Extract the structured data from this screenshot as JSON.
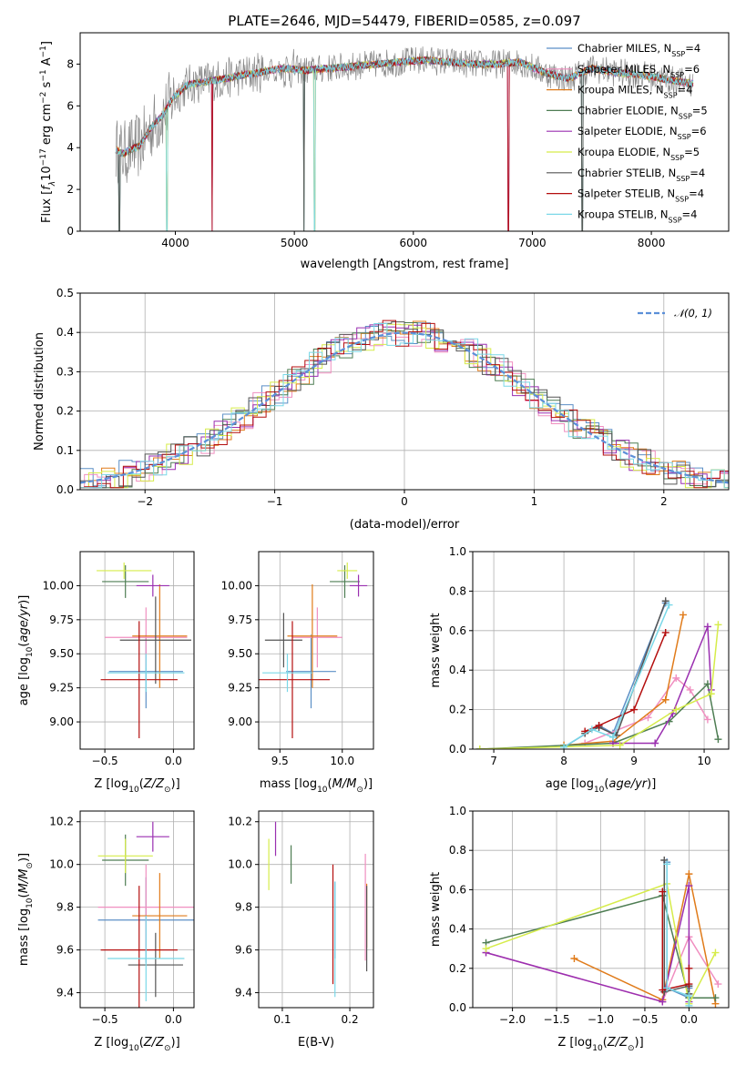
{
  "figure": {
    "width": 819,
    "height": 1170
  },
  "colors": [
    "#5b8fc6",
    "#f08fc0",
    "#e07b1a",
    "#4e7d53",
    "#9a2fb0",
    "#d6ec4a",
    "#555555",
    "#b40e0e",
    "#7ad8e8"
  ],
  "chart_data": [
    {
      "id": "spectrum",
      "type": "line",
      "title": "PLATE=2646, MJD=54479, FIBERID=0585, z=0.097",
      "xlabel": "wavelength [Angstrom, rest frame]",
      "ylabel": "Flux [fλ10⁻¹⁷ erg cm⁻² s⁻¹ A⁻¹]",
      "xlim": [
        3200,
        8650
      ],
      "ylim": [
        0,
        9.5
      ],
      "xticks": [
        4000,
        5000,
        6000,
        7000,
        8000
      ],
      "yticks": [
        0,
        2,
        4,
        6,
        8
      ],
      "continuum": {
        "x": [
          3500,
          3560,
          3620,
          3700,
          3800,
          3900,
          3980,
          4100,
          4300,
          4500,
          4700,
          4900,
          5100,
          5300,
          5500,
          5700,
          5900,
          6100,
          6300,
          6500,
          6700,
          6900,
          7100,
          7300,
          7500,
          7700,
          7900,
          8100,
          8300
        ],
        "y": [
          3.9,
          3.7,
          3.9,
          4.1,
          5.0,
          5.6,
          6.4,
          7.0,
          7.2,
          7.4,
          7.6,
          7.8,
          7.7,
          7.8,
          7.9,
          8.0,
          8.1,
          8.2,
          8.1,
          8.0,
          8.0,
          8.1,
          7.6,
          7.3,
          7.8,
          7.6,
          7.5,
          7.3,
          7.1
        ]
      },
      "absorption_lines": [
        3530,
        3930,
        4310,
        5080,
        5170,
        6800,
        7420
      ],
      "legend_position": "upper-right",
      "series": [
        {
          "name": "Chabrier MILES, N",
          "sub": "SSP",
          "value": "=4",
          "color": "#5b8fc6"
        },
        {
          "name": "Salpeter MILES, N",
          "sub": "SSP",
          "value": "=6",
          "color": "#f08fc0"
        },
        {
          "name": "Kroupa MILES, N",
          "sub": "SSP",
          "value": "=4",
          "color": "#e07b1a"
        },
        {
          "name": "Chabrier ELODIE, N",
          "sub": "SSP",
          "value": "=5",
          "color": "#4e7d53"
        },
        {
          "name": "Salpeter ELODIE, N",
          "sub": "SSP",
          "value": "=6",
          "color": "#9a2fb0"
        },
        {
          "name": "Kroupa ELODIE, N",
          "sub": "SSP",
          "value": "=5",
          "color": "#d6ec4a"
        },
        {
          "name": "Chabrier STELIB, N",
          "sub": "SSP",
          "value": "=4",
          "color": "#555555"
        },
        {
          "name": "Salpeter STELIB, N",
          "sub": "SSP",
          "value": "=4",
          "color": "#b40e0e"
        },
        {
          "name": "Kroupa STELIB, N",
          "sub": "SSP",
          "value": "=4",
          "color": "#7ad8e8"
        }
      ]
    },
    {
      "id": "residuals",
      "type": "line",
      "xlabel": "(data-model)/error",
      "ylabel": "Normed distribution",
      "xlim": [
        -2.5,
        2.5
      ],
      "ylim": [
        0,
        0.5
      ],
      "xticks": [
        -2,
        -1,
        0,
        1,
        2
      ],
      "yticks": [
        0.0,
        0.1,
        0.2,
        0.3,
        0.4,
        0.5
      ],
      "bin_width": 0.1,
      "reference_curve": {
        "name": "𝒩(0, 1)",
        "mean": 0,
        "sigma": 1,
        "color": "#5b8fd8",
        "style": "dashed"
      },
      "legend_position": "upper-right"
    },
    {
      "id": "age-vs-Z",
      "type": "scatter",
      "xlabel": "Z [log₁₀(Z/Z⊙)]",
      "ylabel": "age  [log₁₀(age/yr)]",
      "xlim": [
        -0.68,
        0.15
      ],
      "ylim": [
        8.8,
        10.25
      ],
      "xticks": [
        -0.5,
        0.0
      ],
      "yticks": [
        9.0,
        9.25,
        9.5,
        9.75,
        10.0
      ],
      "points": [
        {
          "x": -0.2,
          "xerr": 0.27,
          "y": 9.37,
          "yerr": 0.27,
          "color": "#5b8fc6"
        },
        {
          "x": -0.2,
          "xerr": 0.3,
          "y": 9.62,
          "yerr": 0.22,
          "color": "#f08fc0"
        },
        {
          "x": -0.1,
          "xerr": 0.2,
          "y": 9.63,
          "yerr": 0.38,
          "color": "#e07b1a"
        },
        {
          "x": -0.35,
          "xerr": 0.17,
          "y": 10.03,
          "yerr": 0.12,
          "color": "#4e7d53"
        },
        {
          "x": -0.15,
          "xerr": 0.12,
          "y": 10.0,
          "yerr": 0.08,
          "color": "#9a2fb0"
        },
        {
          "x": -0.36,
          "xerr": 0.2,
          "y": 10.11,
          "yerr": 0.06,
          "color": "#d6ec4a"
        },
        {
          "x": -0.13,
          "xerr": 0.26,
          "y": 9.6,
          "yerr": 0.32,
          "color": "#555555"
        },
        {
          "x": -0.25,
          "xerr": 0.28,
          "y": 9.31,
          "yerr": 0.43,
          "color": "#b40e0e"
        },
        {
          "x": -0.2,
          "xerr": 0.28,
          "y": 9.36,
          "yerr": 0.14,
          "color": "#7ad8e8"
        }
      ]
    },
    {
      "id": "age-vs-mass",
      "type": "scatter",
      "xlabel": "mass [log₁₀(M/M⊙)]",
      "ylabel": "",
      "xlim": [
        9.33,
        10.25
      ],
      "ylim": [
        8.8,
        10.25
      ],
      "xticks": [
        9.5,
        10.0
      ],
      "yticks": [
        9.0,
        9.25,
        9.5,
        9.75,
        10.0
      ],
      "points": [
        {
          "x": 9.75,
          "xerr": 0.2,
          "y": 9.37,
          "yerr": 0.27,
          "color": "#5b8fc6"
        },
        {
          "x": 9.8,
          "xerr": 0.2,
          "y": 9.62,
          "yerr": 0.22,
          "color": "#f08fc0"
        },
        {
          "x": 9.76,
          "xerr": 0.2,
          "y": 9.63,
          "yerr": 0.38,
          "color": "#e07b1a"
        },
        {
          "x": 10.02,
          "xerr": 0.12,
          "y": 10.03,
          "yerr": 0.12,
          "color": "#4e7d53"
        },
        {
          "x": 10.13,
          "xerr": 0.07,
          "y": 10.0,
          "yerr": 0.08,
          "color": "#9a2fb0"
        },
        {
          "x": 10.04,
          "xerr": 0.08,
          "y": 10.11,
          "yerr": 0.06,
          "color": "#d6ec4a"
        },
        {
          "x": 9.53,
          "xerr": 0.15,
          "y": 9.6,
          "yerr": 0.2,
          "color": "#555555"
        },
        {
          "x": 9.6,
          "xerr": 0.3,
          "y": 9.31,
          "yerr": 0.43,
          "color": "#b40e0e"
        },
        {
          "x": 9.56,
          "xerr": 0.2,
          "y": 9.36,
          "yerr": 0.14,
          "color": "#7ad8e8"
        }
      ]
    },
    {
      "id": "weight-vs-age",
      "type": "line",
      "xlabel": "age  [log₁₀(age/yr)]",
      "ylabel": "mass weight",
      "xlim": [
        6.7,
        10.35
      ],
      "ylim": [
        0,
        1
      ],
      "xticks": [
        7,
        8,
        9,
        10
      ],
      "yticks": [
        0.0,
        0.2,
        0.4,
        0.6,
        0.8,
        1.0
      ],
      "series": [
        {
          "color": "#5b8fc6",
          "x": [
            8.0,
            8.5,
            8.7,
            9.45
          ],
          "y": [
            0.01,
            0.12,
            0.08,
            0.74
          ]
        },
        {
          "color": "#f08fc0",
          "x": [
            8.3,
            9.2,
            9.6,
            9.8,
            10.05
          ],
          "y": [
            0.03,
            0.16,
            0.36,
            0.3,
            0.15
          ]
        },
        {
          "color": "#e07b1a",
          "x": [
            8.0,
            8.7,
            9.45,
            9.7
          ],
          "y": [
            0.02,
            0.04,
            0.25,
            0.68
          ]
        },
        {
          "color": "#4e7d53",
          "x": [
            6.8,
            8.7,
            9.5,
            10.05,
            10.2
          ],
          "y": [
            0.0,
            0.03,
            0.14,
            0.33,
            0.05
          ]
        },
        {
          "color": "#9a2fb0",
          "x": [
            8.7,
            9.3,
            9.55,
            10.05,
            10.1
          ],
          "y": [
            0.03,
            0.03,
            0.18,
            0.62,
            0.3
          ]
        },
        {
          "color": "#d6ec4a",
          "x": [
            6.8,
            8.8,
            9.6,
            10.1,
            10.2
          ],
          "y": [
            0.0,
            0.02,
            0.2,
            0.28,
            0.63
          ]
        },
        {
          "color": "#555555",
          "x": [
            8.3,
            8.5,
            8.75,
            9.45
          ],
          "y": [
            0.08,
            0.11,
            0.07,
            0.75
          ]
        },
        {
          "color": "#b40e0e",
          "x": [
            8.3,
            8.5,
            9.0,
            9.45
          ],
          "y": [
            0.09,
            0.12,
            0.2,
            0.59
          ]
        },
        {
          "color": "#7ad8e8",
          "x": [
            8.0,
            8.4,
            8.7,
            9.5
          ],
          "y": [
            0.01,
            0.1,
            0.06,
            0.73
          ]
        }
      ]
    },
    {
      "id": "mass-vs-Z",
      "type": "scatter",
      "xlabel": "Z [log₁₀(Z/Z⊙)]",
      "ylabel": "mass [log₁₀(M/M⊙)]",
      "xlim": [
        -0.68,
        0.15
      ],
      "ylim": [
        9.33,
        10.25
      ],
      "xticks": [
        -0.5,
        0.0
      ],
      "yticks": [
        9.4,
        9.6,
        9.8,
        10.0,
        10.2
      ],
      "points": [
        {
          "x": -0.2,
          "xerr": 0.35,
          "y": 9.74,
          "yerr": 0.2,
          "color": "#5b8fc6"
        },
        {
          "x": -0.2,
          "xerr": 0.35,
          "y": 9.8,
          "yerr": 0.2,
          "color": "#f08fc0"
        },
        {
          "x": -0.1,
          "xerr": 0.2,
          "y": 9.76,
          "yerr": 0.2,
          "color": "#e07b1a"
        },
        {
          "x": -0.35,
          "xerr": 0.17,
          "y": 10.02,
          "yerr": 0.12,
          "color": "#4e7d53"
        },
        {
          "x": -0.15,
          "xerr": 0.12,
          "y": 10.13,
          "yerr": 0.07,
          "color": "#9a2fb0"
        },
        {
          "x": -0.35,
          "xerr": 0.2,
          "y": 10.04,
          "yerr": 0.08,
          "color": "#d6ec4a"
        },
        {
          "x": -0.13,
          "xerr": 0.2,
          "y": 9.53,
          "yerr": 0.15,
          "color": "#555555"
        },
        {
          "x": -0.25,
          "xerr": 0.28,
          "y": 9.6,
          "yerr": 0.3,
          "color": "#b40e0e"
        },
        {
          "x": -0.2,
          "xerr": 0.28,
          "y": 9.56,
          "yerr": 0.2,
          "color": "#7ad8e8"
        }
      ]
    },
    {
      "id": "mass-vs-ebv",
      "type": "scatter",
      "xlabel": "E(B-V)",
      "ylabel": "",
      "xlim": [
        0.065,
        0.235
      ],
      "ylim": [
        9.33,
        10.25
      ],
      "xticks": [
        0.1,
        0.2
      ],
      "yticks": [
        9.4,
        9.6,
        9.8,
        10.0,
        10.2
      ],
      "points": [
        {
          "x": 0.178,
          "y": 9.74,
          "yerr": 0.18,
          "color": "#5b8fc6"
        },
        {
          "x": 0.223,
          "y": 9.8,
          "yerr": 0.25,
          "color": "#f08fc0"
        },
        {
          "x": 0.225,
          "y": 9.76,
          "yerr": 0.15,
          "color": "#e07b1a"
        },
        {
          "x": 0.113,
          "y": 10.0,
          "yerr": 0.09,
          "color": "#4e7d53"
        },
        {
          "x": 0.09,
          "y": 10.12,
          "yerr": 0.08,
          "color": "#9a2fb0"
        },
        {
          "x": 0.08,
          "y": 10.0,
          "yerr": 0.12,
          "color": "#d6ec4a"
        },
        {
          "x": 0.225,
          "y": 9.7,
          "yerr": 0.2,
          "color": "#555555"
        },
        {
          "x": 0.175,
          "y": 9.72,
          "yerr": 0.28,
          "color": "#b40e0e"
        },
        {
          "x": 0.178,
          "y": 9.65,
          "yerr": 0.27,
          "color": "#7ad8e8"
        }
      ]
    },
    {
      "id": "weight-vs-Z",
      "type": "line",
      "xlabel": "Z [log₁₀(Z/Z⊙)]",
      "ylabel": "mass weight",
      "xlim": [
        -2.45,
        0.45
      ],
      "ylim": [
        0,
        1
      ],
      "xticks": [
        -2.0,
        -1.5,
        -1.0,
        -0.5,
        0.0
      ],
      "yticks": [
        0.0,
        0.2,
        0.4,
        0.6,
        0.8,
        1.0
      ],
      "series": [
        {
          "color": "#5b8fc6",
          "x": [
            -0.25,
            -0.25,
            0.0,
            0.0
          ],
          "y": [
            0.74,
            0.1,
            0.05,
            0.1
          ]
        },
        {
          "color": "#f08fc0",
          "x": [
            -2.3,
            -0.3,
            0.0,
            0.33
          ],
          "y": [
            0.28,
            0.03,
            0.36,
            0.12
          ]
        },
        {
          "color": "#e07b1a",
          "x": [
            -1.3,
            -0.3,
            0.0,
            0.3
          ],
          "y": [
            0.25,
            0.04,
            0.68,
            0.02
          ]
        },
        {
          "color": "#4e7d53",
          "x": [
            -2.3,
            -0.3,
            0.0,
            0.3
          ],
          "y": [
            0.33,
            0.57,
            0.05,
            0.05
          ]
        },
        {
          "color": "#9a2fb0",
          "x": [
            -2.3,
            -0.3,
            0.0,
            0.0
          ],
          "y": [
            0.28,
            0.03,
            0.62,
            0.03
          ]
        },
        {
          "color": "#d6ec4a",
          "x": [
            -2.3,
            -0.25,
            0.0,
            0.3
          ],
          "y": [
            0.3,
            0.63,
            0.02,
            0.28
          ]
        },
        {
          "color": "#555555",
          "x": [
            -0.28,
            -0.28,
            0.0,
            0.0
          ],
          "y": [
            0.75,
            0.08,
            0.11,
            0.07
          ]
        },
        {
          "color": "#b40e0e",
          "x": [
            -0.3,
            -0.3,
            0.0,
            0.0
          ],
          "y": [
            0.59,
            0.09,
            0.12,
            0.2
          ]
        },
        {
          "color": "#7ad8e8",
          "x": [
            -0.25,
            -0.25,
            0.0,
            0.0
          ],
          "y": [
            0.73,
            0.1,
            0.06,
            0.01
          ]
        }
      ]
    }
  ]
}
